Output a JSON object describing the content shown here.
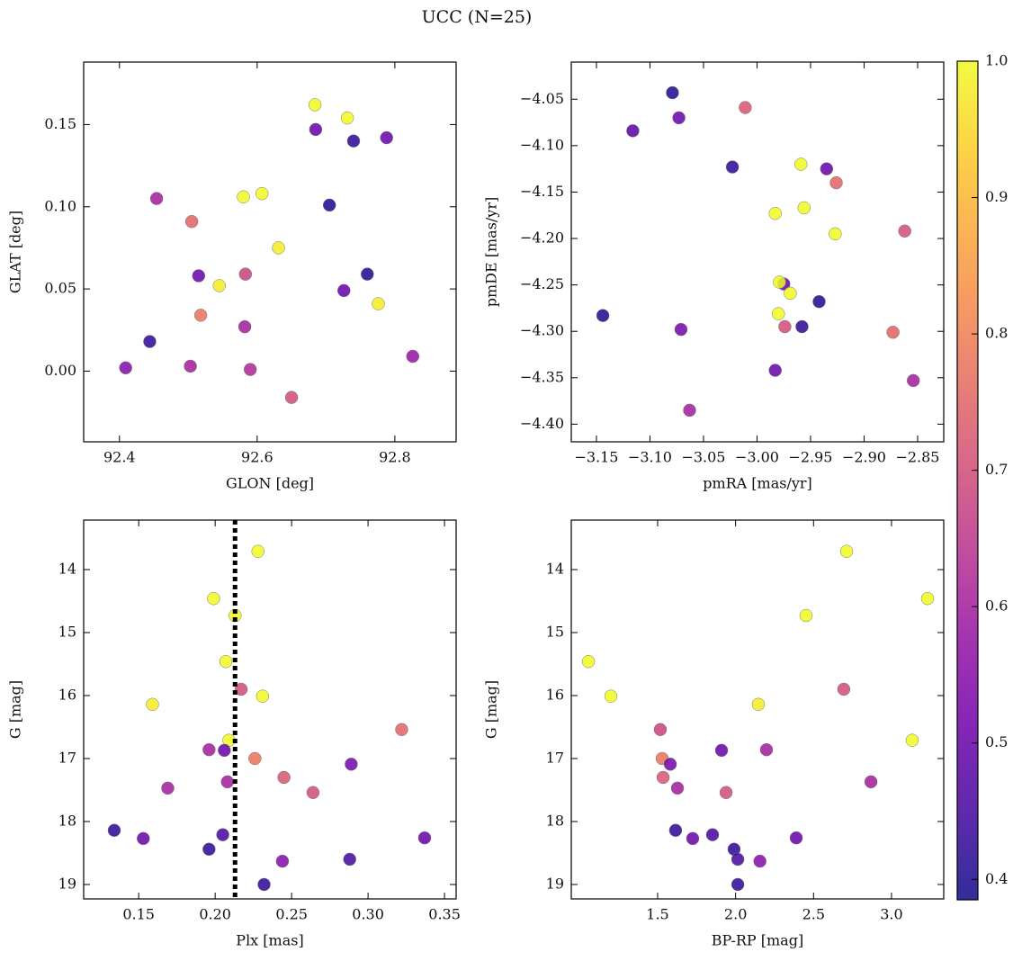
{
  "title": "UCC (N=25)",
  "colorbar": {
    "cmap": "plasma",
    "clim": [
      0.385,
      1.0
    ],
    "ticks": [
      0.4,
      0.5,
      0.6,
      0.7,
      0.8,
      0.9,
      {
        "value": 1.0,
        "label": "1.0"
      }
    ]
  },
  "chart_data": [
    {
      "type": "scatter",
      "xlabel": "GLON [deg]",
      "ylabel": "GLAT [deg]",
      "xlim": [
        92.348,
        92.889
      ],
      "ylim": [
        -0.043,
        0.188
      ],
      "xticks": [
        92.4,
        92.6,
        92.8
      ],
      "yticks": [
        {
          "value": 0.0,
          "label": "0.00"
        },
        0.05,
        {
          "value": 0.1,
          "label": "0.10"
        },
        0.15
      ],
      "x": [
        92.684,
        92.731,
        92.685,
        92.74,
        92.788,
        92.454,
        92.505,
        92.58,
        92.607,
        92.705,
        92.631,
        92.515,
        92.583,
        92.545,
        92.76,
        92.726,
        92.776,
        92.518,
        92.582,
        92.444,
        92.409,
        92.503,
        92.59,
        92.65,
        92.826
      ],
      "y": [
        0.162,
        0.154,
        0.147,
        0.14,
        0.142,
        0.105,
        0.091,
        0.106,
        0.108,
        0.101,
        0.075,
        0.058,
        0.059,
        0.052,
        0.059,
        0.049,
        0.041,
        0.034,
        0.027,
        0.018,
        0.002,
        0.003,
        0.001,
        -0.016,
        0.009
      ],
      "c": [
        1.0,
        1.0,
        0.5,
        0.42,
        0.5,
        0.6,
        0.75,
        1.0,
        1.0,
        0.4,
        0.98,
        0.5,
        0.68,
        0.98,
        0.4,
        0.5,
        0.98,
        0.78,
        0.6,
        0.42,
        0.55,
        0.6,
        0.62,
        0.7,
        0.58
      ]
    },
    {
      "type": "scatter",
      "xlabel": "pmRA [mas/yr]",
      "ylabel": "pmDE [mas/yr]",
      "xlim": [
        -3.1735,
        -2.8256
      ],
      "ylim": [
        -4.419,
        -4.01
      ],
      "xticks": [
        {
          "value": -3.15,
          "label": "−3.15"
        },
        {
          "value": -3.1,
          "label": "−3.10"
        },
        {
          "value": -3.05,
          "label": "−3.05"
        },
        {
          "value": -3.0,
          "label": "−3.00"
        },
        {
          "value": -2.95,
          "label": "−2.95"
        },
        {
          "value": -2.9,
          "label": "−2.90"
        },
        {
          "value": -2.85,
          "label": "−2.85"
        }
      ],
      "yticks": [
        {
          "value": -4.05,
          "label": "−4.05"
        },
        {
          "value": -4.1,
          "label": "−4.10"
        },
        {
          "value": -4.15,
          "label": "−4.15"
        },
        {
          "value": -4.2,
          "label": "−4.20"
        },
        {
          "value": -4.25,
          "label": "−4.25"
        },
        {
          "value": -4.3,
          "label": "−4.30"
        },
        {
          "value": -4.35,
          "label": "−4.35"
        },
        {
          "value": -4.4,
          "label": "−4.40"
        }
      ],
      "x": [
        -3.079,
        -3.073,
        -3.011,
        -3.116,
        -3.023,
        -2.959,
        -2.935,
        -2.926,
        -2.983,
        -2.956,
        -2.927,
        -2.862,
        -2.975,
        -2.979,
        -2.969,
        -2.942,
        -3.144,
        -2.98,
        -3.071,
        -2.974,
        -2.958,
        -2.873,
        -2.983,
        -2.854,
        -3.063
      ],
      "y": [
        -4.043,
        -4.07,
        -4.059,
        -4.084,
        -4.123,
        -4.12,
        -4.125,
        -4.14,
        -4.173,
        -4.167,
        -4.195,
        -4.192,
        -4.249,
        -4.247,
        -4.259,
        -4.268,
        -4.283,
        -4.281,
        -4.298,
        -4.295,
        -4.295,
        -4.301,
        -4.342,
        -4.353,
        -4.385
      ],
      "c": [
        0.4,
        0.5,
        0.72,
        0.48,
        0.42,
        1.0,
        0.5,
        0.75,
        1.0,
        1.0,
        1.0,
        0.7,
        0.5,
        1.0,
        1.0,
        0.4,
        0.4,
        1.0,
        0.52,
        0.7,
        0.42,
        0.75,
        0.5,
        0.6,
        0.6
      ]
    },
    {
      "type": "scatter",
      "xlabel": "Plx [mas]",
      "ylabel": "G [mag]",
      "xlim": [
        0.114,
        0.3576
      ],
      "ylim": [
        19.229,
        13.214
      ],
      "vline": 0.213,
      "xticks": [
        0.15,
        {
          "value": 0.2,
          "label": "0.20"
        },
        0.25,
        {
          "value": 0.3,
          "label": "0.30"
        },
        0.35
      ],
      "yticks": [
        14,
        15,
        16,
        17,
        18,
        19
      ],
      "x": [
        0.228,
        0.199,
        0.213,
        0.207,
        0.217,
        0.159,
        0.231,
        0.322,
        0.209,
        0.196,
        0.206,
        0.226,
        0.289,
        0.208,
        0.245,
        0.169,
        0.264,
        0.134,
        0.153,
        0.205,
        0.337,
        0.196,
        0.244,
        0.288,
        0.232
      ],
      "y": [
        13.71,
        14.46,
        14.73,
        15.46,
        15.9,
        16.14,
        16.01,
        16.54,
        16.71,
        16.86,
        16.87,
        17.0,
        17.09,
        17.37,
        17.3,
        17.47,
        17.54,
        18.14,
        18.27,
        18.21,
        18.26,
        18.44,
        18.63,
        18.6,
        19.0
      ],
      "c": [
        1.0,
        1.0,
        1.0,
        1.0,
        0.7,
        0.98,
        1.0,
        0.75,
        1.0,
        0.6,
        0.5,
        0.78,
        0.52,
        0.6,
        0.72,
        0.6,
        0.7,
        0.42,
        0.5,
        0.45,
        0.5,
        0.42,
        0.55,
        0.45,
        0.42
      ]
    },
    {
      "type": "scatter",
      "xlabel": "BP-RP [mag]",
      "ylabel": "G [mag]",
      "xlim": [
        0.946,
        3.335
      ],
      "ylim": [
        19.229,
        13.214
      ],
      "xticks": [
        1.5,
        {
          "value": 2.0,
          "label": "2.0"
        },
        2.5,
        {
          "value": 3.0,
          "label": "3.0"
        }
      ],
      "yticks": [
        14,
        15,
        16,
        17,
        18,
        19
      ],
      "x": [
        2.712,
        3.231,
        2.452,
        1.056,
        2.694,
        1.2,
        2.146,
        1.517,
        3.133,
        2.198,
        1.91,
        1.529,
        1.581,
        2.868,
        1.535,
        1.627,
        1.939,
        1.615,
        1.725,
        1.852,
        2.389,
        1.99,
        2.156,
        2.014,
        2.014
      ],
      "y": [
        13.71,
        14.46,
        14.73,
        15.46,
        15.9,
        16.01,
        16.14,
        16.54,
        16.71,
        16.86,
        16.87,
        17.0,
        17.09,
        17.37,
        17.3,
        17.47,
        17.54,
        18.14,
        18.27,
        18.21,
        18.26,
        18.44,
        18.63,
        18.6,
        19.0
      ],
      "c": [
        1.0,
        1.0,
        1.0,
        1.0,
        0.7,
        1.0,
        0.98,
        0.68,
        1.0,
        0.6,
        0.5,
        0.78,
        0.52,
        0.6,
        0.72,
        0.6,
        0.7,
        0.42,
        0.5,
        0.45,
        0.5,
        0.42,
        0.55,
        0.45,
        0.42
      ]
    }
  ]
}
